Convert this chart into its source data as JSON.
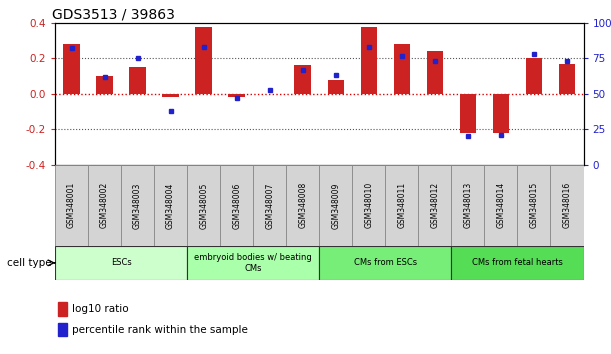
{
  "title": "GDS3513 / 39863",
  "samples": [
    "GSM348001",
    "GSM348002",
    "GSM348003",
    "GSM348004",
    "GSM348005",
    "GSM348006",
    "GSM348007",
    "GSM348008",
    "GSM348009",
    "GSM348010",
    "GSM348011",
    "GSM348012",
    "GSM348013",
    "GSM348014",
    "GSM348015",
    "GSM348016"
  ],
  "log10_ratio": [
    0.28,
    0.1,
    0.15,
    -0.02,
    0.38,
    -0.02,
    0.0,
    0.16,
    0.08,
    0.38,
    0.28,
    0.24,
    -0.22,
    -0.22,
    0.2,
    0.17
  ],
  "percentile_rank": [
    82,
    62,
    75,
    38,
    83,
    47,
    53,
    67,
    63,
    83,
    77,
    73,
    20,
    21,
    78,
    73
  ],
  "red_color": "#cc2222",
  "blue_color": "#2222cc",
  "zero_line_color": "#dd0000",
  "dotted_line_color": "#555555",
  "ylim_left": [
    -0.4,
    0.4
  ],
  "ylim_right": [
    0,
    100
  ],
  "yticks_left": [
    -0.4,
    -0.2,
    0.0,
    0.2,
    0.4
  ],
  "yticks_right": [
    0,
    25,
    50,
    75,
    100
  ],
  "yticklabels_right": [
    "0",
    "25",
    "50",
    "75",
    "100%"
  ],
  "cell_groups": [
    {
      "label": "ESCs",
      "start": 0,
      "end": 3,
      "color": "#ccffcc"
    },
    {
      "label": "embryoid bodies w/ beating\nCMs",
      "start": 4,
      "end": 7,
      "color": "#aaffaa"
    },
    {
      "label": "CMs from ESCs",
      "start": 8,
      "end": 11,
      "color": "#77ee77"
    },
    {
      "label": "CMs from fetal hearts",
      "start": 12,
      "end": 15,
      "color": "#55dd55"
    }
  ],
  "legend_items": [
    {
      "label": "log10 ratio",
      "color": "#cc2222"
    },
    {
      "label": "percentile rank within the sample",
      "color": "#2222cc"
    }
  ],
  "cell_type_label": "cell type",
  "bar_width": 0.5,
  "bg_color": "#ffffff",
  "plot_bg_color": "#ffffff",
  "label_fontsize": 5.5,
  "title_fontsize": 10
}
